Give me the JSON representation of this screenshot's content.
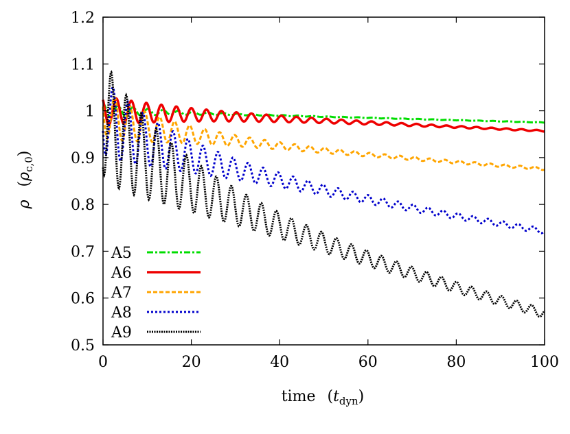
{
  "chart_data": {
    "type": "line",
    "xlabel": {
      "main": "time",
      "sym": "t",
      "sub": "dyn"
    },
    "ylabel": {
      "main": "ρ",
      "sym": "ρ",
      "sub": "c,0"
    },
    "xlim": [
      0,
      100
    ],
    "ylim": [
      0.5,
      1.2
    ],
    "xticks": [
      "0",
      "20",
      "40",
      "60",
      "80",
      "100"
    ],
    "xtick_values": [
      0,
      20,
      40,
      60,
      80,
      100
    ],
    "yticks": [
      "0.5",
      "0.6",
      "0.7",
      "0.8",
      "0.9",
      "1",
      "1.1",
      "1.2"
    ],
    "ytick_values": [
      0.5,
      0.6,
      0.7,
      0.8,
      0.9,
      1.0,
      1.1,
      1.2
    ],
    "grid": false,
    "legend_position": "bottom-left",
    "series": [
      {
        "name": "A5",
        "color": "#00dd00",
        "dash": "dashdot",
        "final": 0.975,
        "decay_scale": 1.0,
        "amp0": 0.015,
        "damp": 12,
        "osc_period": 3.4
      },
      {
        "name": "A6",
        "color": "#ee0000",
        "dash": "solid",
        "final": 0.957,
        "decay_scale": 1.0,
        "amp0": 0.03,
        "damp": 25,
        "osc_period": 3.4
      },
      {
        "name": "A7",
        "color": "#ffa500",
        "dash": "dashed",
        "final": 0.876,
        "decay_scale": 0.55,
        "amp0": 0.05,
        "damp": 18,
        "osc_period": 3.4
      },
      {
        "name": "A8",
        "color": "#0000cc",
        "dash": "dotted",
        "final": 0.743,
        "decay_scale": 0.6,
        "amp0": 0.08,
        "damp": 20,
        "osc_period": 3.4
      },
      {
        "name": "A9",
        "color": "#000000",
        "dash": "dense",
        "final": 0.567,
        "decay_scale": 0.62,
        "amp0": 0.12,
        "damp": 22,
        "osc_period": 3.4
      }
    ]
  }
}
